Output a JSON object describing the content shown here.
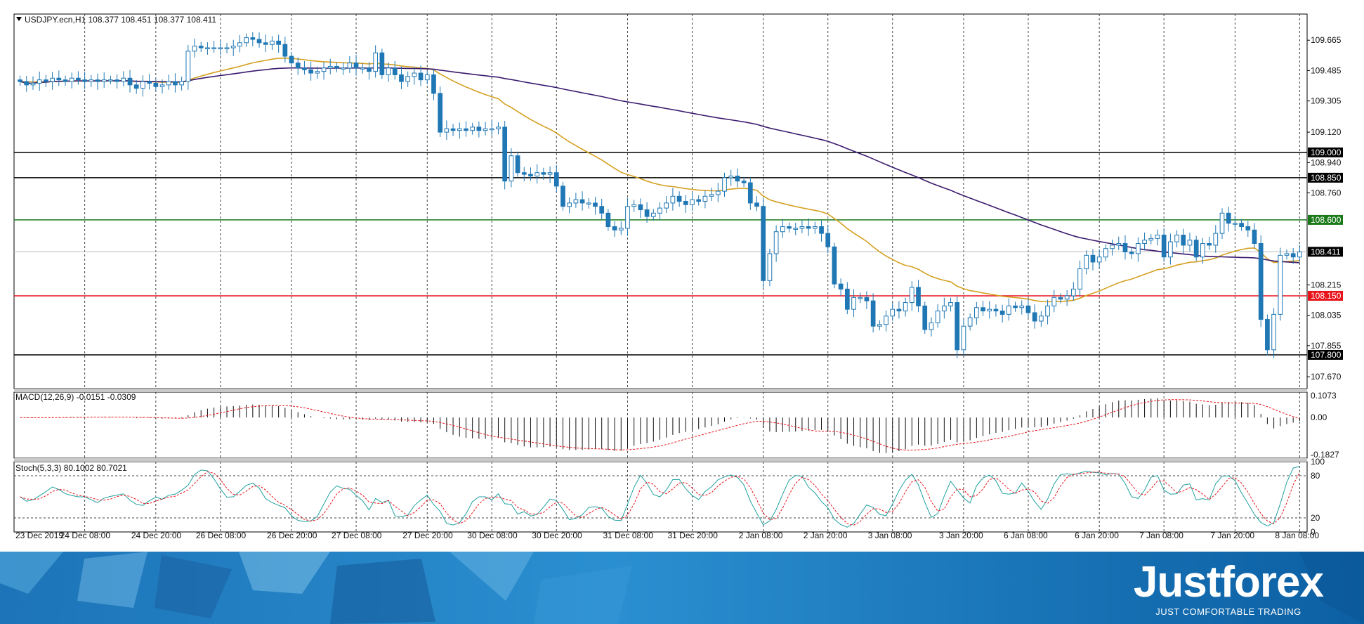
{
  "chart_data": {
    "type": "candlestick",
    "symbol_header": "USDJPY.ecn,H1  108.377 108.451 108.377 108.411",
    "current_price": 108.411,
    "x_labels": [
      "23 Dec 2019",
      "24 Dec 08:00",
      "24 Dec 20:00",
      "26 Dec 08:00",
      "26 Dec 20:00",
      "27 Dec 08:00",
      "27 Dec 20:00",
      "30 Dec 08:00",
      "30 Dec 20:00",
      "31 Dec 08:00",
      "31 Dec 20:00",
      "2 Jan 08:00",
      "2 Jan 20:00",
      "3 Jan 08:00",
      "3 Jan 20:00",
      "6 Jan 08:00",
      "6 Jan 20:00",
      "7 Jan 08:00",
      "7 Jan 20:00",
      "8 Jan 08:00"
    ],
    "price_axis": {
      "ticks": [
        "109.665",
        "109.485",
        "109.305",
        "109.120",
        "108.940",
        "108.760",
        "108.215",
        "108.035",
        "107.855",
        "107.670"
      ],
      "range": [
        107.6,
        109.82
      ]
    },
    "levels": [
      {
        "value": 109.0,
        "label": "109.000",
        "color": "#000000"
      },
      {
        "value": 108.85,
        "label": "108.850",
        "color": "#000000"
      },
      {
        "value": 108.6,
        "label": "108.600",
        "color": "#1a7a1a"
      },
      {
        "value": 108.15,
        "label": "108.150",
        "color": "#e8141c"
      },
      {
        "value": 107.8,
        "label": "107.800",
        "color": "#000000"
      }
    ],
    "candle_closes": [
      109.42,
      109.4,
      109.41,
      109.43,
      109.42,
      109.44,
      109.43,
      109.42,
      109.44,
      109.43,
      109.42,
      109.43,
      109.42,
      109.43,
      109.43,
      109.42,
      109.44,
      109.4,
      109.38,
      109.42,
      109.41,
      109.39,
      109.4,
      109.42,
      109.4,
      109.42,
      109.6,
      109.63,
      109.62,
      109.62,
      109.62,
      109.62,
      109.62,
      109.63,
      109.65,
      109.68,
      109.67,
      109.65,
      109.64,
      109.66,
      109.64,
      109.57,
      109.53,
      109.5,
      109.49,
      109.47,
      109.48,
      109.5,
      109.51,
      109.5,
      109.5,
      109.53,
      109.5,
      109.5,
      109.48,
      109.59,
      109.46,
      109.5,
      109.46,
      109.42,
      109.45,
      109.47,
      109.43,
      109.46,
      109.35,
      109.12,
      109.14,
      109.13,
      109.14,
      109.13,
      109.15,
      109.13,
      109.14,
      109.14,
      109.15,
      108.83,
      108.98,
      108.88,
      108.87,
      108.86,
      108.88,
      108.87,
      108.88,
      108.8,
      108.68,
      108.7,
      108.72,
      108.7,
      108.7,
      108.68,
      108.64,
      108.56,
      108.54,
      108.55,
      108.68,
      108.69,
      108.66,
      108.62,
      108.64,
      108.67,
      108.7,
      108.74,
      108.71,
      108.69,
      108.72,
      108.71,
      108.74,
      108.75,
      108.77,
      108.85,
      108.86,
      108.83,
      108.82,
      108.7,
      108.68,
      108.24,
      108.4,
      108.53,
      108.56,
      108.55,
      108.55,
      108.56,
      108.55,
      108.56,
      108.52,
      108.44,
      108.22,
      108.19,
      108.07,
      108.14,
      108.14,
      108.12,
      107.97,
      107.98,
      108.03,
      108.07,
      108.06,
      108.11,
      108.2,
      108.09,
      107.95,
      107.99,
      108.06,
      108.09,
      108.11,
      107.83,
      107.97,
      108.02,
      108.08,
      108.06,
      108.07,
      108.06,
      108.04,
      108.09,
      108.08,
      108.09,
      108.05,
      108.0,
      108.03,
      108.09,
      108.14,
      108.13,
      108.15,
      108.19,
      108.31,
      108.39,
      108.35,
      108.38,
      108.43,
      108.45,
      108.46,
      108.41,
      108.4,
      108.46,
      108.48,
      108.49,
      108.51,
      108.38,
      108.47,
      108.51,
      108.45,
      108.48,
      108.38,
      108.46,
      108.45,
      108.52,
      108.64,
      108.58,
      108.58,
      108.56,
      108.54,
      108.46,
      108.01,
      107.83,
      108.04,
      108.39,
      108.4,
      108.38,
      108.41
    ],
    "ma_fast_color": "#d4a020",
    "ma_slow_color": "#3a1a6e",
    "macd": {
      "label": "MACD(12,26,9) -0.0151 -0.0309",
      "ticks": [
        "0.1073",
        "0.00",
        "-0.1827"
      ],
      "range": [
        -0.2,
        0.125
      ]
    },
    "stoch": {
      "label": "Stoch(5,3,3) 80.1002 80.7021",
      "ticks": [
        "100",
        "80",
        "20",
        "0"
      ],
      "levels": [
        20,
        80
      ],
      "range": [
        0,
        100
      ]
    },
    "colors": {
      "bull": "#ffffff",
      "bear": "#1f77b4",
      "wick": "#1f77b4",
      "grid": "#333333",
      "axis": "#000000"
    }
  },
  "banner": {
    "brand": "Justforex",
    "tagline": "JUST COMFORTABLE TRADING"
  }
}
